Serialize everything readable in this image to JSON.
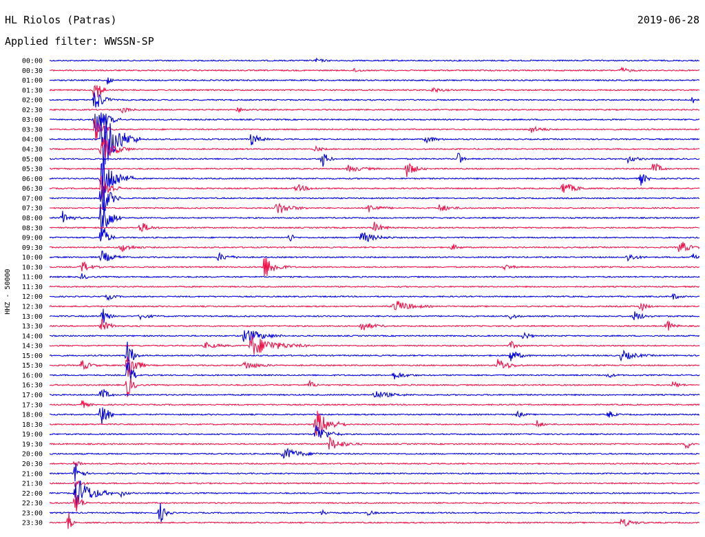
{
  "header": {
    "title": "HL Riolos (Patras)",
    "subtitle": "Applied filter: WWSSN-SP",
    "date": "2019-06-28"
  },
  "colors": {
    "trace_a": "#0000e0",
    "trace_b": "#f0124a",
    "text": "#000000"
  },
  "chart_data": {
    "type": "line",
    "title": "HL Riolos (Patras)",
    "subtitle": "Applied filter: WWSSN-SP",
    "ylabel": "HHZ - 50000",
    "rows": [
      "00:00",
      "00:30",
      "01:00",
      "01:30",
      "02:00",
      "02:30",
      "03:00",
      "03:30",
      "04:00",
      "04:30",
      "05:00",
      "05:30",
      "06:00",
      "06:30",
      "07:00",
      "07:30",
      "08:00",
      "08:30",
      "09:00",
      "09:30",
      "10:00",
      "10:30",
      "11:00",
      "11:30",
      "12:00",
      "12:30",
      "13:00",
      "13:30",
      "14:00",
      "14:30",
      "15:00",
      "15:30",
      "16:00",
      "16:30",
      "17:00",
      "17:30",
      "18:00",
      "18:30",
      "19:00",
      "19:30",
      "20:00",
      "20:30",
      "21:00",
      "21:30",
      "22:00",
      "22:30",
      "23:00",
      "23:30"
    ],
    "row_colors": [
      "trace_a",
      "trace_b"
    ],
    "row_duration_minutes": 30,
    "events": [
      {
        "row": 0,
        "t": 0.41,
        "amp": 0.4,
        "dur": 0.03
      },
      {
        "row": 1,
        "t": 0.47,
        "amp": 0.5,
        "dur": 0.02
      },
      {
        "row": 1,
        "t": 0.88,
        "amp": 0.6,
        "dur": 0.03
      },
      {
        "row": 2,
        "t": 0.09,
        "amp": 2.0,
        "dur": 0.01
      },
      {
        "row": 3,
        "t": 0.59,
        "amp": 0.6,
        "dur": 0.03
      },
      {
        "row": 3,
        "t": 0.07,
        "amp": 4.0,
        "dur": 0.02
      },
      {
        "row": 4,
        "t": 0.07,
        "amp": 3.0,
        "dur": 0.03
      },
      {
        "row": 4,
        "t": 0.99,
        "amp": 0.8,
        "dur": 0.01
      },
      {
        "row": 5,
        "t": 0.11,
        "amp": 0.8,
        "dur": 0.03
      },
      {
        "row": 5,
        "t": 0.29,
        "amp": 0.5,
        "dur": 0.03
      },
      {
        "row": 6,
        "t": 0.07,
        "amp": 4.0,
        "dur": 0.04
      },
      {
        "row": 7,
        "t": 0.07,
        "amp": 3.0,
        "dur": 0.03
      },
      {
        "row": 7,
        "t": 0.74,
        "amp": 0.8,
        "dur": 0.04
      },
      {
        "row": 8,
        "t": 0.08,
        "amp": 8.0,
        "dur": 0.06
      },
      {
        "row": 8,
        "t": 0.31,
        "amp": 1.5,
        "dur": 0.03
      },
      {
        "row": 8,
        "t": 0.58,
        "amp": 0.9,
        "dur": 0.03
      },
      {
        "row": 9,
        "t": 0.08,
        "amp": 3.0,
        "dur": 0.05
      },
      {
        "row": 9,
        "t": 0.41,
        "amp": 0.7,
        "dur": 0.02
      },
      {
        "row": 10,
        "t": 0.42,
        "amp": 2.0,
        "dur": 0.02
      },
      {
        "row": 10,
        "t": 0.63,
        "amp": 2.5,
        "dur": 0.01
      },
      {
        "row": 10,
        "t": 0.89,
        "amp": 0.8,
        "dur": 0.03
      },
      {
        "row": 11,
        "t": 0.46,
        "amp": 0.8,
        "dur": 0.05
      },
      {
        "row": 11,
        "t": 0.55,
        "amp": 2.0,
        "dur": 0.03
      },
      {
        "row": 11,
        "t": 0.93,
        "amp": 2.0,
        "dur": 0.02
      },
      {
        "row": 12,
        "t": 0.08,
        "amp": 6.0,
        "dur": 0.05
      },
      {
        "row": 12,
        "t": 0.91,
        "amp": 1.5,
        "dur": 0.02
      },
      {
        "row": 13,
        "t": 0.08,
        "amp": 4.0,
        "dur": 0.03
      },
      {
        "row": 13,
        "t": 0.38,
        "amp": 0.9,
        "dur": 0.04
      },
      {
        "row": 13,
        "t": 0.79,
        "amp": 1.6,
        "dur": 0.04
      },
      {
        "row": 14,
        "t": 0.08,
        "amp": 5.0,
        "dur": 0.03
      },
      {
        "row": 15,
        "t": 0.35,
        "amp": 1.5,
        "dur": 0.05
      },
      {
        "row": 15,
        "t": 0.49,
        "amp": 1.0,
        "dur": 0.04
      },
      {
        "row": 15,
        "t": 0.6,
        "amp": 0.9,
        "dur": 0.04
      },
      {
        "row": 16,
        "t": 0.02,
        "amp": 1.5,
        "dur": 0.03
      },
      {
        "row": 16,
        "t": 0.08,
        "amp": 6.0,
        "dur": 0.03
      },
      {
        "row": 17,
        "t": 0.14,
        "amp": 1.5,
        "dur": 0.03
      },
      {
        "row": 17,
        "t": 0.5,
        "amp": 1.2,
        "dur": 0.03
      },
      {
        "row": 18,
        "t": 0.08,
        "amp": 4.0,
        "dur": 0.02
      },
      {
        "row": 18,
        "t": 0.37,
        "amp": 1.5,
        "dur": 0.01
      },
      {
        "row": 18,
        "t": 0.48,
        "amp": 1.4,
        "dur": 0.05
      },
      {
        "row": 19,
        "t": 0.11,
        "amp": 1.0,
        "dur": 0.04
      },
      {
        "row": 19,
        "t": 0.62,
        "amp": 0.8,
        "dur": 0.02
      },
      {
        "row": 19,
        "t": 0.97,
        "amp": 1.8,
        "dur": 0.03
      },
      {
        "row": 20,
        "t": 0.08,
        "amp": 1.5,
        "dur": 0.04
      },
      {
        "row": 20,
        "t": 0.26,
        "amp": 0.9,
        "dur": 0.04
      },
      {
        "row": 20,
        "t": 0.89,
        "amp": 1.0,
        "dur": 0.03
      },
      {
        "row": 20,
        "t": 0.99,
        "amp": 1.5,
        "dur": 0.01
      },
      {
        "row": 21,
        "t": 0.05,
        "amp": 1.5,
        "dur": 0.03
      },
      {
        "row": 21,
        "t": 0.33,
        "amp": 3.0,
        "dur": 0.04
      },
      {
        "row": 21,
        "t": 0.7,
        "amp": 0.6,
        "dur": 0.03
      },
      {
        "row": 22,
        "t": 0.05,
        "amp": 0.7,
        "dur": 0.02
      },
      {
        "row": 24,
        "t": 0.09,
        "amp": 0.8,
        "dur": 0.02
      },
      {
        "row": 24,
        "t": 0.96,
        "amp": 0.7,
        "dur": 0.02
      },
      {
        "row": 25,
        "t": 0.53,
        "amp": 1.5,
        "dur": 0.06
      },
      {
        "row": 25,
        "t": 0.91,
        "amp": 1.2,
        "dur": 0.02
      },
      {
        "row": 26,
        "t": 0.08,
        "amp": 2.5,
        "dur": 0.02
      },
      {
        "row": 26,
        "t": 0.14,
        "amp": 0.7,
        "dur": 0.03
      },
      {
        "row": 26,
        "t": 0.71,
        "amp": 0.8,
        "dur": 0.02
      },
      {
        "row": 26,
        "t": 0.9,
        "amp": 1.2,
        "dur": 0.03
      },
      {
        "row": 27,
        "t": 0.08,
        "amp": 1.5,
        "dur": 0.03
      },
      {
        "row": 27,
        "t": 0.48,
        "amp": 1.2,
        "dur": 0.04
      },
      {
        "row": 27,
        "t": 0.95,
        "amp": 1.5,
        "dur": 0.02
      },
      {
        "row": 28,
        "t": 0.3,
        "amp": 2.0,
        "dur": 0.06
      },
      {
        "row": 28,
        "t": 0.73,
        "amp": 1.0,
        "dur": 0.02
      },
      {
        "row": 29,
        "t": 0.24,
        "amp": 0.7,
        "dur": 0.05
      },
      {
        "row": 29,
        "t": 0.31,
        "amp": 2.5,
        "dur": 0.09
      },
      {
        "row": 29,
        "t": 0.71,
        "amp": 1.0,
        "dur": 0.02
      },
      {
        "row": 30,
        "t": 0.12,
        "amp": 4.0,
        "dur": 0.02
      },
      {
        "row": 30,
        "t": 0.71,
        "amp": 1.5,
        "dur": 0.03
      },
      {
        "row": 30,
        "t": 0.88,
        "amp": 1.2,
        "dur": 0.05
      },
      {
        "row": 31,
        "t": 0.05,
        "amp": 1.2,
        "dur": 0.03
      },
      {
        "row": 31,
        "t": 0.12,
        "amp": 4.0,
        "dur": 0.03
      },
      {
        "row": 31,
        "t": 0.3,
        "amp": 1.0,
        "dur": 0.05
      },
      {
        "row": 31,
        "t": 0.69,
        "amp": 1.5,
        "dur": 0.04
      },
      {
        "row": 32,
        "t": 0.12,
        "amp": 4.0,
        "dur": 0.02
      },
      {
        "row": 32,
        "t": 0.53,
        "amp": 0.9,
        "dur": 0.04
      },
      {
        "row": 32,
        "t": 0.86,
        "amp": 0.6,
        "dur": 0.02
      },
      {
        "row": 33,
        "t": 0.12,
        "amp": 3.0,
        "dur": 0.02
      },
      {
        "row": 33,
        "t": 0.4,
        "amp": 1.0,
        "dur": 0.02
      },
      {
        "row": 33,
        "t": 0.96,
        "amp": 1.0,
        "dur": 0.02
      },
      {
        "row": 34,
        "t": 0.08,
        "amp": 2.0,
        "dur": 0.02
      },
      {
        "row": 34,
        "t": 0.5,
        "amp": 0.9,
        "dur": 0.06
      },
      {
        "row": 35,
        "t": 0.05,
        "amp": 1.0,
        "dur": 0.02
      },
      {
        "row": 36,
        "t": 0.08,
        "amp": 4.0,
        "dur": 0.02
      },
      {
        "row": 36,
        "t": 0.72,
        "amp": 0.8,
        "dur": 0.02
      },
      {
        "row": 36,
        "t": 0.86,
        "amp": 0.9,
        "dur": 0.02
      },
      {
        "row": 37,
        "t": 0.41,
        "amp": 3.5,
        "dur": 0.05
      },
      {
        "row": 37,
        "t": 0.75,
        "amp": 1.0,
        "dur": 0.02
      },
      {
        "row": 38,
        "t": 0.41,
        "amp": 2.5,
        "dur": 0.04
      },
      {
        "row": 39,
        "t": 0.43,
        "amp": 1.6,
        "dur": 0.05
      },
      {
        "row": 39,
        "t": 0.98,
        "amp": 1.2,
        "dur": 0.02
      },
      {
        "row": 40,
        "t": 0.36,
        "amp": 1.5,
        "dur": 0.06
      },
      {
        "row": 41,
        "t": 0.04,
        "amp": 1.0,
        "dur": 0.02
      },
      {
        "row": 42,
        "t": 0.04,
        "amp": 3.0,
        "dur": 0.02
      },
      {
        "row": 43,
        "t": 0.04,
        "amp": 1.2,
        "dur": 0.02
      },
      {
        "row": 44,
        "t": 0.04,
        "amp": 4.0,
        "dur": 0.06
      },
      {
        "row": 44,
        "t": 0.11,
        "amp": 0.8,
        "dur": 0.02
      },
      {
        "row": 45,
        "t": 0.04,
        "amp": 3.0,
        "dur": 0.02
      },
      {
        "row": 46,
        "t": 0.17,
        "amp": 2.5,
        "dur": 0.02
      },
      {
        "row": 46,
        "t": 0.42,
        "amp": 0.6,
        "dur": 0.02
      },
      {
        "row": 46,
        "t": 0.49,
        "amp": 0.6,
        "dur": 0.02
      },
      {
        "row": 47,
        "t": 0.03,
        "amp": 2.5,
        "dur": 0.01
      },
      {
        "row": 47,
        "t": 0.88,
        "amp": 1.0,
        "dur": 0.04
      }
    ]
  }
}
